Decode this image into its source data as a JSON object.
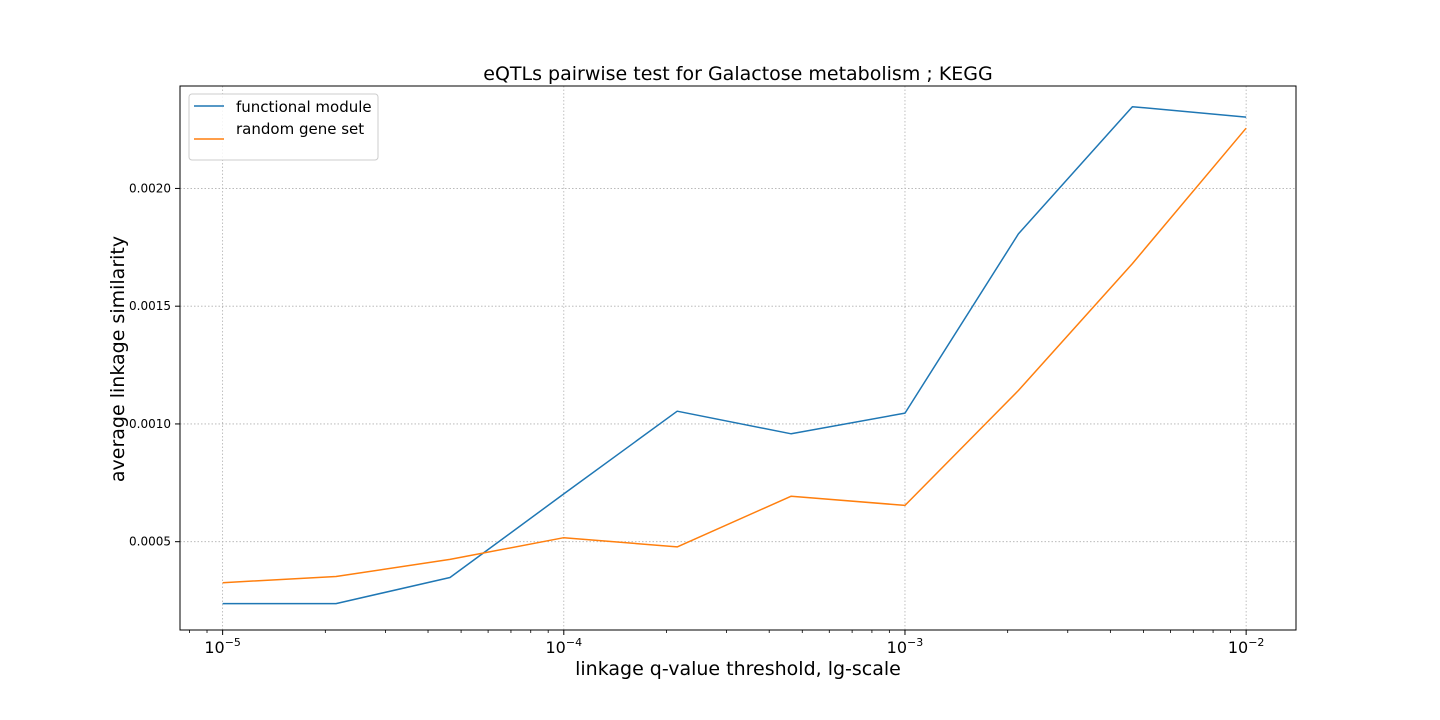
{
  "chart_data": {
    "type": "line",
    "title": "eQTLs pairwise test for Galactose metabolism ; KEGG",
    "xlabel": "linkage q-value threshold, lg-scale",
    "ylabel": "average linkage similarity",
    "xscale": "log",
    "x": [
      1e-05,
      2.15e-05,
      4.64e-05,
      0.0001,
      0.000215,
      0.000464,
      0.001,
      0.00215,
      0.00464,
      0.01
    ],
    "xlim": [
      7.5e-06,
      0.014
    ],
    "ylim": [
      0.000125,
      0.002435
    ],
    "xticks": [
      {
        "value": 1e-05,
        "base": "10",
        "exp": "−5"
      },
      {
        "value": 0.0001,
        "base": "10",
        "exp": "−4"
      },
      {
        "value": 0.001,
        "base": "10",
        "exp": "−3"
      },
      {
        "value": 0.01,
        "base": "10",
        "exp": "−2"
      }
    ],
    "yticks": [
      {
        "value": 0.0005,
        "label": "0.0005"
      },
      {
        "value": 0.001,
        "label": "0.0010"
      },
      {
        "value": 0.0015,
        "label": "0.0015"
      },
      {
        "value": 0.002,
        "label": "0.0020"
      }
    ],
    "grid": true,
    "legend_position": "top-left",
    "series": [
      {
        "name": "functional module",
        "color": "#1f77b4",
        "values": [
          0.000237,
          0.000237,
          0.000348,
          0.000703,
          0.001054,
          0.000958,
          0.001046,
          0.001807,
          0.002347,
          0.002303
        ]
      },
      {
        "name": "random gene set",
        "color": "#ff7f0e",
        "values": [
          0.000326,
          0.000352,
          0.000425,
          0.000517,
          0.000478,
          0.000693,
          0.000654,
          0.001142,
          0.001681,
          0.002256
        ]
      }
    ]
  }
}
